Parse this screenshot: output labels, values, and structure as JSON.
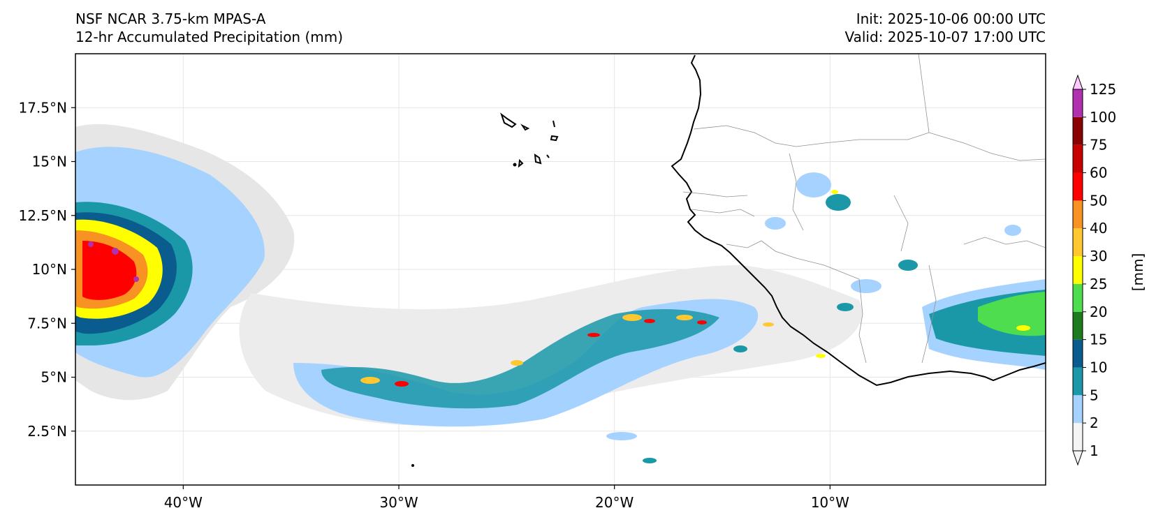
{
  "header": {
    "left_line1": "NSF NCAR 3.75-km MPAS-A",
    "left_line2": "12-hr Accumulated Precipitation (mm)",
    "right_line1": "Init: 2025-10-06 00:00 UTC",
    "right_line2": "Valid: 2025-10-07 17:00 UTC"
  },
  "axes": {
    "lat_labels": [
      "17.5°N",
      "15°N",
      "12.5°N",
      "10°N",
      "7.5°N",
      "5°N",
      "2.5°N"
    ],
    "lat_values": [
      17.5,
      15,
      12.5,
      10,
      7.5,
      5,
      2.5
    ],
    "lon_labels": [
      "40°W",
      "30°W",
      "20°W",
      "10°W"
    ],
    "lon_values": [
      -40,
      -30,
      -20,
      -10
    ],
    "lon_range": [
      -45,
      0
    ],
    "lat_range": [
      0,
      20
    ]
  },
  "colorbar": {
    "label": "[mm]",
    "levels": [
      "1",
      "2",
      "5",
      "10",
      "15",
      "20",
      "25",
      "30",
      "40",
      "50",
      "60",
      "75",
      "100",
      "125"
    ],
    "colors": [
      "#f4f4f4",
      "#a6d2ff",
      "#1a98a8",
      "#0b5c8e",
      "#1e7a1e",
      "#4edd4e",
      "#ffff00",
      "#ffc830",
      "#f89222",
      "#ff0000",
      "#c80000",
      "#8b0000",
      "#b030b0",
      "#ffc8ff"
    ]
  }
}
